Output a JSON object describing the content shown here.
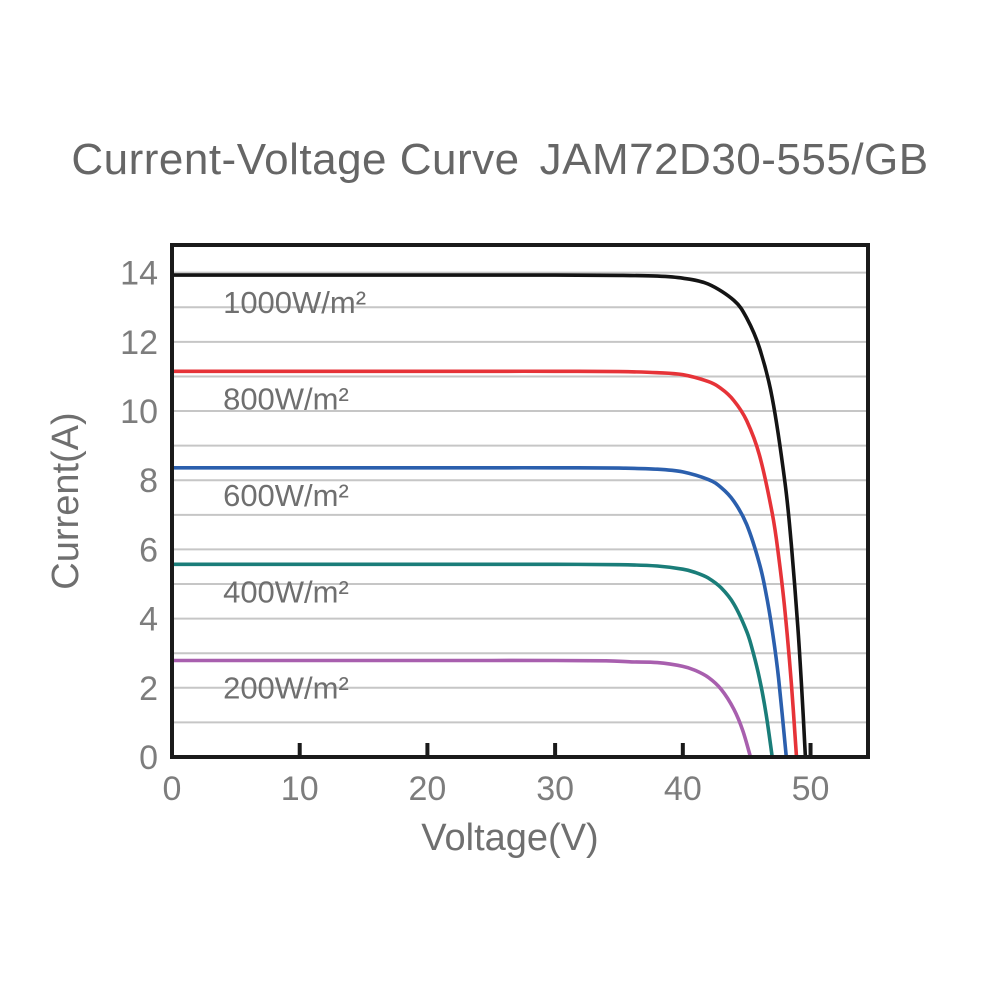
{
  "title": {
    "main": "Current-Voltage Curve",
    "model": "JAM72D30-555/GB"
  },
  "chart_data": {
    "type": "line",
    "title": "Current-Voltage Curve JAM72D30-555/GB",
    "xlabel": "Voltage(V)",
    "ylabel": "Current(A)",
    "xlim": [
      0,
      54.5
    ],
    "ylim": [
      0,
      14.8
    ],
    "x_ticks": [
      0,
      10,
      20,
      30,
      40,
      50
    ],
    "y_ticks": [
      0,
      2,
      4,
      6,
      8,
      10,
      12,
      14
    ],
    "grid": {
      "horizontal_step": 1,
      "vertical": false,
      "color": "#c6c6c6"
    },
    "legend_position": "inline-labels-left",
    "series": [
      {
        "name": "1000W/m²",
        "color": "#141414",
        "isc_a": 13.93,
        "voc_v": 49.6,
        "points": [
          [
            0,
            13.93
          ],
          [
            5,
            13.93
          ],
          [
            10,
            13.93
          ],
          [
            15,
            13.93
          ],
          [
            20,
            13.93
          ],
          [
            25,
            13.93
          ],
          [
            30,
            13.93
          ],
          [
            35,
            13.92
          ],
          [
            38,
            13.9
          ],
          [
            40,
            13.84
          ],
          [
            42,
            13.67
          ],
          [
            44,
            13.2
          ],
          [
            45,
            12.69
          ],
          [
            46,
            11.83
          ],
          [
            47,
            10.38
          ],
          [
            48,
            7.93
          ],
          [
            48.5,
            6.12
          ],
          [
            49,
            3.77
          ],
          [
            49.3,
            2.03
          ],
          [
            49.6,
            0
          ]
        ]
      },
      {
        "name": "800W/m²",
        "color": "#e63338",
        "isc_a": 11.15,
        "voc_v": 48.9,
        "points": [
          [
            0,
            11.15
          ],
          [
            5,
            11.15
          ],
          [
            10,
            11.15
          ],
          [
            15,
            11.15
          ],
          [
            20,
            11.15
          ],
          [
            25,
            11.15
          ],
          [
            30,
            11.15
          ],
          [
            35,
            11.14
          ],
          [
            38,
            11.11
          ],
          [
            40,
            11.05
          ],
          [
            42,
            10.85
          ],
          [
            43,
            10.65
          ],
          [
            44,
            10.3
          ],
          [
            45,
            9.72
          ],
          [
            46,
            8.73
          ],
          [
            47,
            7.05
          ],
          [
            47.5,
            5.81
          ],
          [
            48,
            4.21
          ],
          [
            48.5,
            2.11
          ],
          [
            48.9,
            0
          ]
        ]
      },
      {
        "name": "600W/m²",
        "color": "#2b5fad",
        "isc_a": 8.36,
        "voc_v": 48.1,
        "points": [
          [
            0,
            8.36
          ],
          [
            5,
            8.36
          ],
          [
            10,
            8.36
          ],
          [
            15,
            8.36
          ],
          [
            20,
            8.36
          ],
          [
            25,
            8.36
          ],
          [
            30,
            8.36
          ],
          [
            35,
            8.35
          ],
          [
            38,
            8.32
          ],
          [
            40,
            8.24
          ],
          [
            42,
            8.02
          ],
          [
            43,
            7.79
          ],
          [
            44,
            7.39
          ],
          [
            45,
            6.72
          ],
          [
            46,
            5.59
          ],
          [
            46.5,
            4.76
          ],
          [
            47,
            3.67
          ],
          [
            47.5,
            2.27
          ],
          [
            48.1,
            0
          ]
        ]
      },
      {
        "name": "400W/m²",
        "color": "#1a7d79",
        "isc_a": 5.57,
        "voc_v": 47.0,
        "points": [
          [
            0,
            5.57
          ],
          [
            5,
            5.57
          ],
          [
            10,
            5.57
          ],
          [
            15,
            5.57
          ],
          [
            20,
            5.57
          ],
          [
            25,
            5.57
          ],
          [
            30,
            5.57
          ],
          [
            35,
            5.56
          ],
          [
            38,
            5.52
          ],
          [
            40,
            5.43
          ],
          [
            41,
            5.33
          ],
          [
            42,
            5.17
          ],
          [
            43,
            4.89
          ],
          [
            44,
            4.42
          ],
          [
            45,
            3.63
          ],
          [
            45.5,
            3.03
          ],
          [
            46,
            2.28
          ],
          [
            46.5,
            1.29
          ],
          [
            47,
            0
          ]
        ]
      },
      {
        "name": "200W/m²",
        "color": "#a85fae",
        "isc_a": 2.79,
        "voc_v": 45.3,
        "points": [
          [
            0,
            2.79
          ],
          [
            5,
            2.79
          ],
          [
            10,
            2.79
          ],
          [
            15,
            2.79
          ],
          [
            20,
            2.79
          ],
          [
            25,
            2.79
          ],
          [
            30,
            2.79
          ],
          [
            34,
            2.78
          ],
          [
            36,
            2.75
          ],
          [
            38,
            2.73
          ],
          [
            40,
            2.62
          ],
          [
            41,
            2.5
          ],
          [
            42,
            2.3
          ],
          [
            43,
            1.96
          ],
          [
            44,
            1.38
          ],
          [
            44.7,
            0.76
          ],
          [
            45.3,
            0
          ]
        ]
      }
    ]
  },
  "style": {
    "title_color": "#666666",
    "tick_label_color": "#7d7d7d",
    "axis_title_color": "#6f6f6f",
    "curve_label_color": "#6f6f6f",
    "axis_border_color": "#1a1a1a",
    "gridline_color": "#c6c6c6",
    "background": "#ffffff"
  }
}
